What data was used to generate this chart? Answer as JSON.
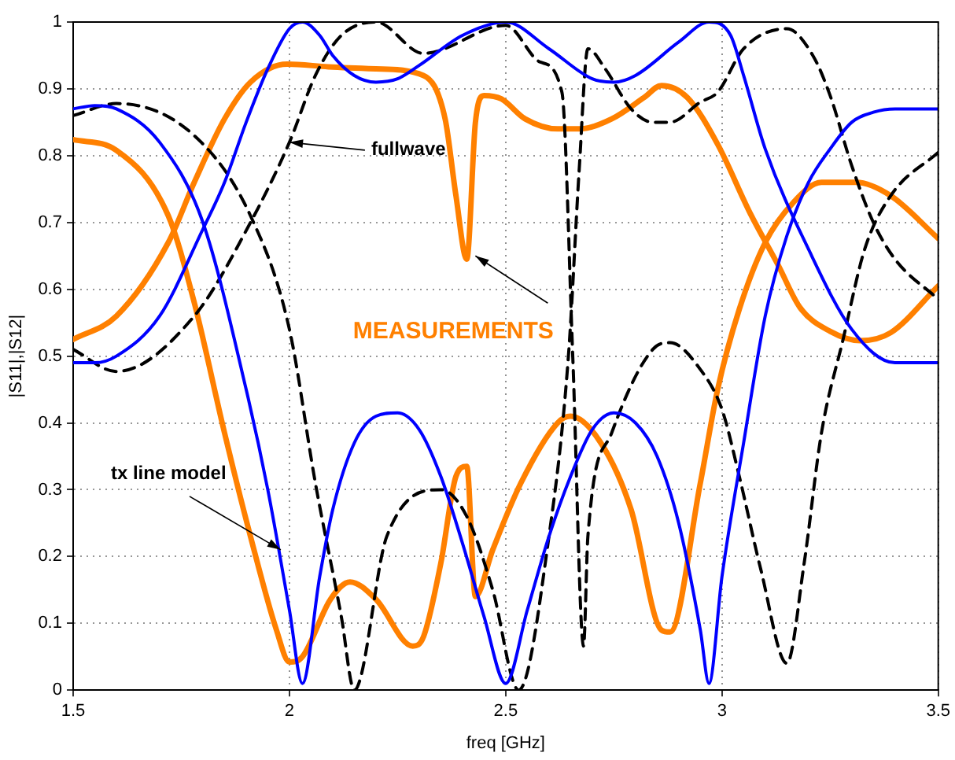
{
  "chart_data": {
    "type": "line",
    "xlabel": "freq [GHz]",
    "ylabel": "|S11|,|S12|",
    "xlim": [
      1.5,
      3.5
    ],
    "ylim": [
      0,
      1
    ],
    "xticks": [
      1.5,
      2,
      2.5,
      3,
      3.5
    ],
    "yticks": [
      0,
      0.1,
      0.2,
      0.3,
      0.4,
      0.5,
      0.6,
      0.7,
      0.8,
      0.9,
      1
    ],
    "grid": true,
    "marker": "none",
    "line_style": "solid",
    "annotations": [
      {
        "text": "fullwave",
        "x": 2.0,
        "y": 0.82
      },
      {
        "text": "MEASUREMENTS",
        "x": 2.43,
        "y": 0.65
      },
      {
        "text": "tx line model",
        "x": 1.98,
        "y": 0.21
      }
    ],
    "series": [
      {
        "color": "#0000ff",
        "x": [
          1.5,
          1.55,
          1.6,
          1.7,
          1.8,
          1.9,
          1.95,
          2.0,
          2.03,
          2.07,
          2.1,
          2.15,
          2.2,
          2.25,
          2.3,
          2.35,
          2.4,
          2.45,
          2.5,
          2.55,
          2.6,
          2.65,
          2.7,
          2.75,
          2.8,
          2.85,
          2.9,
          2.95,
          2.97,
          3.0,
          3.05,
          3.1,
          3.15,
          3.2,
          3.25,
          3.3,
          3.35,
          3.4,
          3.5
        ],
        "values": [
          0.87,
          0.875,
          0.87,
          0.82,
          0.7,
          0.45,
          0.3,
          0.12,
          0.01,
          0.17,
          0.27,
          0.37,
          0.41,
          0.415,
          0.39,
          0.32,
          0.22,
          0.11,
          0.01,
          0.12,
          0.23,
          0.32,
          0.39,
          0.415,
          0.4,
          0.35,
          0.25,
          0.09,
          0.01,
          0.17,
          0.37,
          0.56,
          0.68,
          0.76,
          0.81,
          0.85,
          0.865,
          0.87,
          0.87
        ]
      },
      {
        "color": "#0000ff",
        "x": [
          1.5,
          1.55,
          1.6,
          1.7,
          1.8,
          1.85,
          1.9,
          1.95,
          2.0,
          2.03,
          2.07,
          2.1,
          2.15,
          2.2,
          2.25,
          2.3,
          2.4,
          2.5,
          2.6,
          2.7,
          2.75,
          2.8,
          2.9,
          2.97,
          3.02,
          3.05,
          3.1,
          3.2,
          3.3,
          3.4,
          3.5
        ],
        "values": [
          0.49,
          0.49,
          0.5,
          0.56,
          0.69,
          0.76,
          0.85,
          0.93,
          0.99,
          1.0,
          0.98,
          0.95,
          0.92,
          0.91,
          0.915,
          0.935,
          0.98,
          1.0,
          0.96,
          0.915,
          0.91,
          0.92,
          0.97,
          1.0,
          0.98,
          0.92,
          0.81,
          0.66,
          0.54,
          0.49,
          0.49
        ]
      },
      {
        "color": "#000000",
        "line_style": "dashed",
        "x": [
          1.5,
          1.6,
          1.78,
          1.91,
          2.0,
          2.06,
          2.12,
          2.15,
          2.225,
          2.35,
          2.41,
          2.47,
          2.53,
          2.6,
          2.645,
          2.67,
          2.69,
          2.73,
          2.79,
          2.84,
          2.88,
          2.95,
          2.99,
          3.05,
          3.15,
          3.21,
          3.25,
          3.3,
          3.35,
          3.4,
          3.5
        ],
        "values": [
          0.86,
          0.878,
          0.83,
          0.71,
          0.54,
          0.31,
          0.11,
          0,
          0.23,
          0.3,
          0.26,
          0.15,
          0,
          0.23,
          0.5,
          0.78,
          0.96,
          0.93,
          0.87,
          0.85,
          0.85,
          0.88,
          0.895,
          0.96,
          0.99,
          0.95,
          0.89,
          0.785,
          0.7,
          0.645,
          0.585
        ]
      },
      {
        "color": "#000000",
        "line_style": "dashed",
        "x": [
          1.5,
          1.6,
          1.78,
          1.91,
          2.0,
          2.06,
          2.12,
          2.2,
          2.31,
          2.5,
          2.58,
          2.63,
          2.655,
          2.68,
          2.69,
          2.745,
          2.84,
          2.88,
          2.95,
          3.0,
          3.04,
          3.09,
          3.15,
          3.19,
          3.23,
          3.28,
          3.33,
          3.39,
          3.5
        ],
        "values": [
          0.51,
          0.477,
          0.56,
          0.7,
          0.82,
          0.92,
          0.98,
          1.0,
          0.953,
          0.995,
          0.94,
          0.895,
          0.5,
          0.066,
          0.23,
          0.385,
          0.51,
          0.52,
          0.48,
          0.42,
          0.32,
          0.18,
          0.04,
          0.19,
          0.385,
          0.525,
          0.66,
          0.74,
          0.805
        ]
      },
      {
        "color": "#ff8000",
        "x": [
          1.5,
          1.6,
          1.72,
          1.78,
          1.85,
          1.91,
          1.97,
          2.0,
          2.03,
          2.095,
          2.14,
          2.2,
          2.285,
          2.31,
          2.35,
          2.385,
          2.41,
          2.43,
          2.47,
          2.535,
          2.62,
          2.65,
          2.72,
          2.79,
          2.86,
          2.88,
          2.95,
          2.99,
          3.04,
          3.1,
          3.165,
          3.23,
          3.31,
          3.39,
          3.5
        ],
        "values": [
          0.824,
          0.808,
          0.71,
          0.58,
          0.385,
          0.23,
          0.09,
          0.042,
          0.05,
          0.136,
          0.162,
          0.136,
          0.066,
          0.08,
          0.19,
          0.32,
          0.335,
          0.14,
          0.21,
          0.31,
          0.4,
          0.41,
          0.37,
          0.27,
          0.09,
          0.087,
          0.31,
          0.45,
          0.57,
          0.67,
          0.73,
          0.76,
          0.76,
          0.74,
          0.676
        ]
      },
      {
        "color": "#ff8000",
        "x": [
          1.5,
          1.6,
          1.72,
          1.78,
          1.85,
          1.91,
          1.995,
          2.09,
          2.2,
          2.31,
          2.36,
          2.385,
          2.41,
          2.43,
          2.45,
          2.49,
          2.545,
          2.62,
          2.67,
          2.745,
          2.82,
          2.86,
          2.92,
          2.99,
          3.065,
          3.13,
          3.18,
          3.25,
          3.32,
          3.39,
          3.5
        ],
        "values": [
          0.525,
          0.56,
          0.67,
          0.76,
          0.855,
          0.91,
          0.937,
          0.933,
          0.93,
          0.92,
          0.855,
          0.74,
          0.645,
          0.85,
          0.89,
          0.885,
          0.855,
          0.84,
          0.84,
          0.855,
          0.887,
          0.905,
          0.887,
          0.817,
          0.714,
          0.636,
          0.573,
          0.537,
          0.523,
          0.535,
          0.605
        ]
      }
    ]
  }
}
